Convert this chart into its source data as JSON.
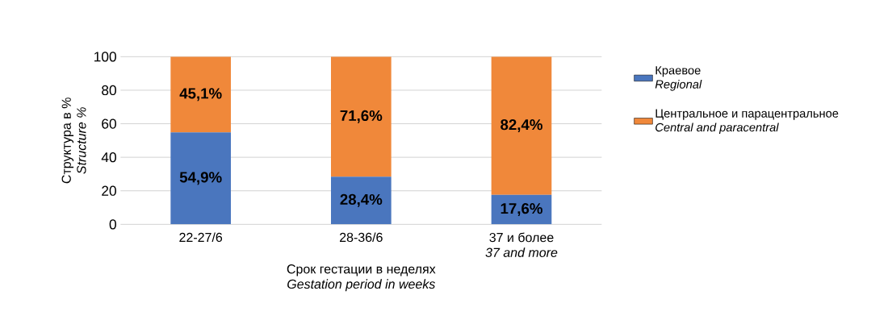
{
  "chart_data": {
    "type": "bar",
    "stacked": true,
    "categories": [
      "22-27/6",
      "28-36/6",
      "37 и более\n*37 and more*"
    ],
    "series": [
      {
        "name": "Краевое\n*Regional*",
        "color": "#4a76be",
        "values": [
          54.9,
          28.4,
          17.6
        ],
        "value_labels": [
          "54,9%",
          "28,4%",
          "17,6%"
        ]
      },
      {
        "name": "Центральное и парацентральное\n*Central and paracentral*",
        "color": "#f0883a",
        "values": [
          45.1,
          71.6,
          82.4
        ],
        "value_labels": [
          "45,1%",
          "71,6%",
          "82,4%"
        ]
      }
    ],
    "xlabel": "Срок гестации в неделях\n*Gestation period in weeks*",
    "ylabel": "Структура в %\n*Structure %*",
    "ylim": [
      0,
      100
    ],
    "yticks": [
      0,
      20,
      40,
      60,
      80,
      100
    ],
    "grid": "y",
    "legend": "right"
  }
}
